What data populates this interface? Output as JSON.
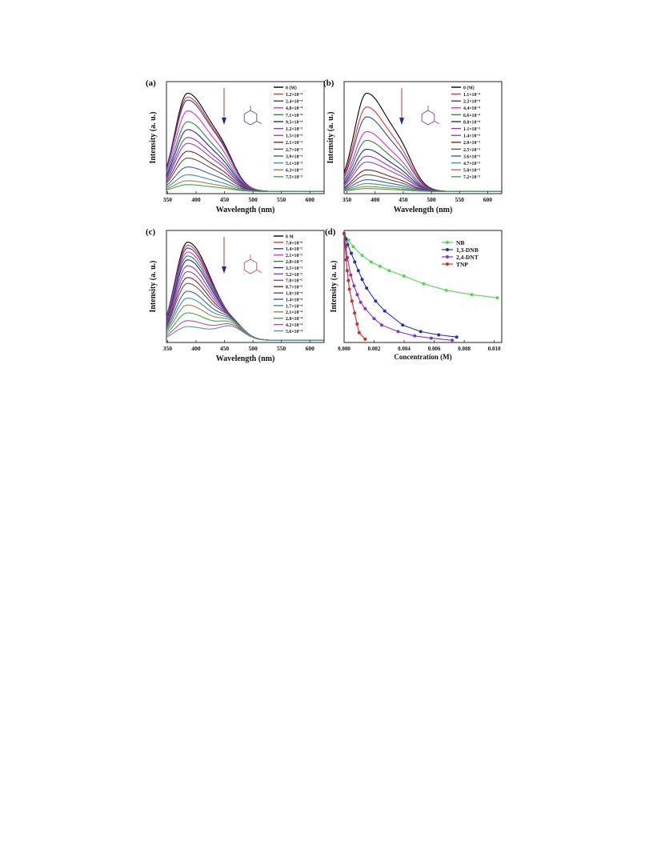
{
  "panels": [
    {
      "label": "(a)",
      "xlabel": "Wavelength (nm)",
      "ylabel": "Intensity (a. u.)",
      "xticks": [
        350,
        400,
        450,
        500,
        550,
        600
      ],
      "xlim": [
        348,
        625
      ],
      "has_arrow": true,
      "structure_color": "#5a4a9a",
      "structure": "1,3-dinitrobenzene",
      "legend": [
        "0 (M)",
        "1.2×10⁻⁴",
        "2.4×10⁻⁴",
        "4.8×10⁻⁴",
        "7.1×10⁻⁴",
        "9.5×10⁻⁴",
        "1.2×10⁻³",
        "1.5×10⁻³",
        "2.1×10⁻³",
        "2.7×10⁻³",
        "3.9×10⁻³",
        "5.1×10⁻³",
        "6.3×10⁻³",
        "7.5×10⁻³"
      ],
      "peak_intensities": [
        1.0,
        0.96,
        0.93,
        0.82,
        0.71,
        0.63,
        0.55,
        0.49,
        0.41,
        0.34,
        0.25,
        0.17,
        0.11,
        0.07
      ],
      "colors": [
        "#000000",
        "#e8332a",
        "#2b3fb5",
        "#e52ad8",
        "#1f8f2e",
        "#1a2f8f",
        "#9a2fd0",
        "#7a4fb0",
        "#8b1f1f",
        "#555555",
        "#3a5ab0",
        "#2a9a9a",
        "#b07a3a",
        "#30b040"
      ]
    },
    {
      "label": "(b)",
      "xlabel": "Wavelength (nm)",
      "ylabel": "Intensity (a. u.)",
      "xticks": [
        350,
        400,
        450,
        500,
        550,
        600
      ],
      "xlim": [
        345,
        625
      ],
      "has_arrow": true,
      "structure_color": "#8a3a8a",
      "structure": "2,4-dinitrotoluene",
      "legend": [
        "0 (M)",
        "1.1×10⁻⁴",
        "2.2×10⁻⁴",
        "4.4×10⁻⁴",
        "6.6×10⁻⁴",
        "8.8×10⁻⁴",
        "1.1×10⁻³",
        "1.4×10⁻³",
        "2.0×10⁻³",
        "2.5×10⁻³",
        "3.6×10⁻³",
        "4.7×10⁻³",
        "5.8×10⁻³",
        "7.2×10⁻³"
      ],
      "peak_intensities": [
        1.0,
        0.86,
        0.76,
        0.61,
        0.52,
        0.43,
        0.36,
        0.3,
        0.22,
        0.17,
        0.12,
        0.08,
        0.05,
        0.03
      ],
      "colors": [
        "#000000",
        "#e8332a",
        "#2b3fb5",
        "#e52ad8",
        "#1f8f2e",
        "#1a2f8f",
        "#9a2fd0",
        "#7a4fb0",
        "#8b1f1f",
        "#555555",
        "#3a5ab0",
        "#2a9a9a",
        "#b07a3a",
        "#30b040"
      ]
    },
    {
      "label": "(c)",
      "xlabel": "Wavelength (nm)",
      "ylabel": "Intensity (a. u.)",
      "xticks": [
        350,
        400,
        450,
        500,
        550,
        600
      ],
      "xlim": [
        348,
        625
      ],
      "has_arrow": true,
      "structure_color": "#c04a4a",
      "structure": "2,4,6-trinitrophenol",
      "legend": [
        "0 M",
        "7.0×10⁻⁶",
        "1.4×10⁻⁵",
        "2.1×10⁻⁵",
        "2.8×10⁻⁵",
        "3.5×10⁻⁵",
        "5.2×10⁻⁵",
        "7.0×10⁻⁵",
        "8.7×10⁻⁵",
        "1.0×10⁻⁴",
        "1.4×10⁻⁴",
        "1.7×10⁻⁴",
        "2.1×10⁻⁴",
        "2.8×10⁻⁴",
        "4.2×10⁻⁴",
        "5.6×10⁻⁴"
      ],
      "peak_intensities": [
        1.0,
        0.97,
        0.94,
        0.9,
        0.86,
        0.82,
        0.76,
        0.7,
        0.64,
        0.58,
        0.5,
        0.43,
        0.36,
        0.28,
        0.2,
        0.14
      ],
      "colors": [
        "#000000",
        "#e8332a",
        "#2b3fb5",
        "#e52ad8",
        "#1f8f2e",
        "#1a2f8f",
        "#9a2fd0",
        "#7a4fb0",
        "#8b1f1f",
        "#555555",
        "#3a5ab0",
        "#2a9a9a",
        "#b07a3a",
        "#30b040",
        "#c04a9a",
        "#4a9ac0"
      ]
    }
  ],
  "panel_d": {
    "label": "(d)",
    "xlabel": "Concentration (M)",
    "ylabel": "Intensity (a. u.)",
    "xticks": [
      "0.000",
      "0.002",
      "0.004",
      "0.006",
      "0.008",
      "0.010"
    ]
  },
  "chart_data": [
    {
      "type": "line",
      "panel": "(a)",
      "xlabel": "Wavelength (nm)",
      "ylabel": "Intensity (a. u.)",
      "xlim": [
        348,
        625
      ],
      "peak_wavelength": 385,
      "shoulder_wavelength": 450,
      "series_names": [
        "0 (M)",
        "1.2×10⁻⁴",
        "2.4×10⁻⁴",
        "4.8×10⁻⁴",
        "7.1×10⁻⁴",
        "9.5×10⁻⁴",
        "1.2×10⁻³",
        "1.5×10⁻³",
        "2.1×10⁻³",
        "2.7×10⁻³",
        "3.9×10⁻³",
        "5.1×10⁻³",
        "6.3×10⁻³",
        "7.5×10⁻³"
      ],
      "relative_peak_intensity": [
        1.0,
        0.96,
        0.93,
        0.82,
        0.71,
        0.63,
        0.55,
        0.49,
        0.41,
        0.34,
        0.25,
        0.17,
        0.11,
        0.07
      ]
    },
    {
      "type": "line",
      "panel": "(b)",
      "xlabel": "Wavelength (nm)",
      "ylabel": "Intensity (a. u.)",
      "xlim": [
        345,
        625
      ],
      "peak_wavelength": 385,
      "shoulder_wavelength": 450,
      "series_names": [
        "0 (M)",
        "1.1×10⁻⁴",
        "2.2×10⁻⁴",
        "4.4×10⁻⁴",
        "6.6×10⁻⁴",
        "8.8×10⁻⁴",
        "1.1×10⁻³",
        "1.4×10⁻³",
        "2.0×10⁻³",
        "2.5×10⁻³",
        "3.6×10⁻³",
        "4.7×10⁻³",
        "5.8×10⁻³",
        "7.2×10⁻³"
      ],
      "relative_peak_intensity": [
        1.0,
        0.86,
        0.76,
        0.61,
        0.52,
        0.43,
        0.36,
        0.3,
        0.22,
        0.17,
        0.12,
        0.08,
        0.05,
        0.03
      ]
    },
    {
      "type": "line",
      "panel": "(c)",
      "xlabel": "Wavelength (nm)",
      "ylabel": "Intensity (a. u.)",
      "xlim": [
        348,
        625
      ],
      "peak_wavelength": 385,
      "shoulder_wavelength": 462,
      "series_names": [
        "0 M",
        "7.0×10⁻⁶",
        "1.4×10⁻⁵",
        "2.1×10⁻⁵",
        "2.8×10⁻⁵",
        "3.5×10⁻⁵",
        "5.2×10⁻⁵",
        "7.0×10⁻⁵",
        "8.7×10⁻⁵",
        "1.0×10⁻⁴",
        "1.4×10⁻⁴",
        "1.7×10⁻⁴",
        "2.1×10⁻⁴",
        "2.8×10⁻⁴",
        "4.2×10⁻⁴",
        "5.6×10⁻⁴"
      ],
      "relative_peak_intensity": [
        1.0,
        0.97,
        0.94,
        0.9,
        0.86,
        0.82,
        0.76,
        0.7,
        0.64,
        0.58,
        0.5,
        0.43,
        0.36,
        0.28,
        0.2,
        0.14
      ]
    },
    {
      "type": "line",
      "panel": "(d)",
      "xlabel": "Concentration (M)",
      "ylabel": "Intensity (a. u.)",
      "xlim": [
        0,
        0.0105
      ],
      "legend_position": "top-right",
      "series": [
        {
          "name": "NB",
          "color": "#4ddb4d",
          "x": [
            0,
            0.0003,
            0.0006,
            0.0012,
            0.0018,
            0.0024,
            0.003,
            0.004,
            0.0053,
            0.0068,
            0.0085,
            0.0102
          ],
          "y": [
            1.0,
            0.94,
            0.88,
            0.8,
            0.74,
            0.7,
            0.66,
            0.61,
            0.54,
            0.48,
            0.44,
            0.41
          ]
        },
        {
          "name": "1,3-DNB",
          "color": "#1f2fbf",
          "x": [
            0,
            0.00012,
            0.00024,
            0.00048,
            0.00071,
            0.00095,
            0.0012,
            0.0015,
            0.0021,
            0.0027,
            0.0039,
            0.0051,
            0.0063,
            0.0075
          ],
          "y": [
            1.0,
            0.95,
            0.9,
            0.82,
            0.74,
            0.66,
            0.58,
            0.5,
            0.38,
            0.29,
            0.16,
            0.1,
            0.07,
            0.05
          ]
        },
        {
          "name": "2,4-DNT",
          "color": "#8a2fd0",
          "x": [
            0,
            0.00011,
            0.00022,
            0.00044,
            0.00066,
            0.00088,
            0.0011,
            0.0014,
            0.002,
            0.0025,
            0.0036,
            0.0047,
            0.0058,
            0.0072
          ],
          "y": [
            1.0,
            0.88,
            0.78,
            0.62,
            0.52,
            0.44,
            0.37,
            0.31,
            0.22,
            0.16,
            0.1,
            0.06,
            0.04,
            0.02
          ]
        },
        {
          "name": "TNP",
          "color": "#d42a2a",
          "x": [
            0,
            7e-05,
            0.00014,
            0.00021,
            0.00028,
            0.00035,
            0.00052,
            0.0007,
            0.00087,
            0.001,
            0.0014
          ],
          "y": [
            1.0,
            0.88,
            0.76,
            0.66,
            0.57,
            0.49,
            0.38,
            0.27,
            0.17,
            0.09,
            0.03
          ]
        }
      ]
    }
  ]
}
